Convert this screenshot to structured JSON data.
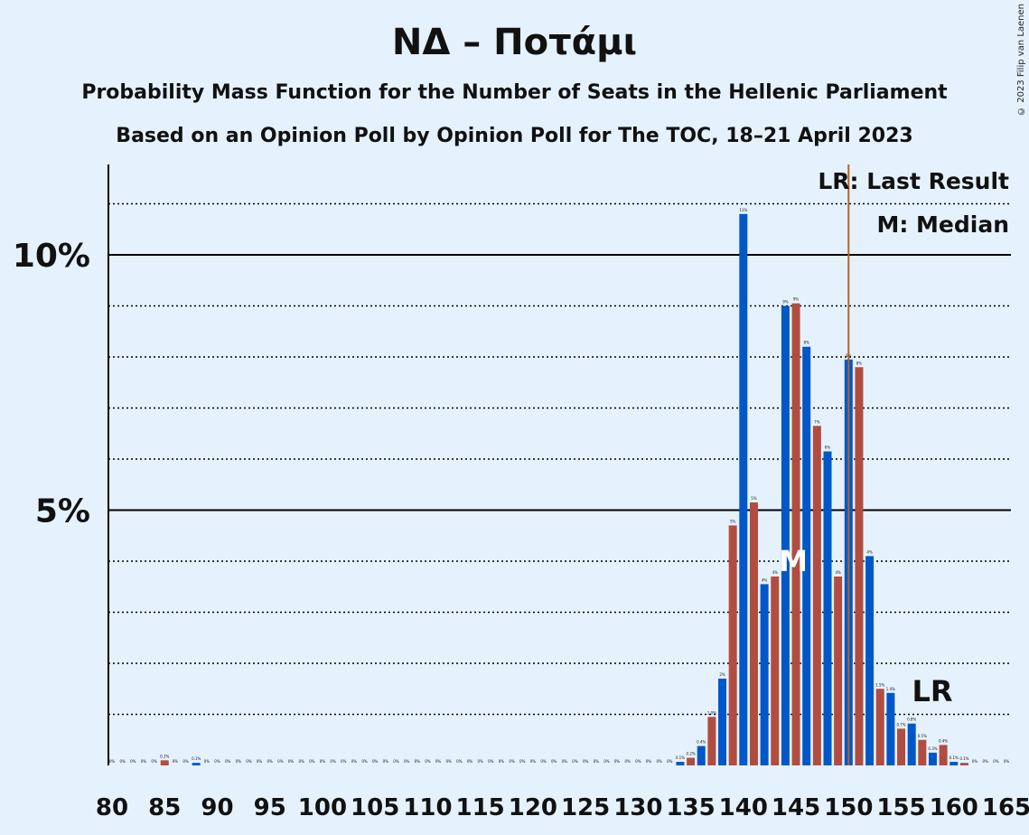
{
  "title": "ΝΔ – Ποτάμι",
  "subtitle1": "Probability Mass Function for the Number of Seats in the Hellenic Parliament",
  "subtitle2": "Based on an Opinion Poll by Opinion Poll for The TOC, 18–21 April 2023",
  "copyright": "© 2023 Filip van Laenen",
  "legend": {
    "last_result": "LR: Last Result",
    "median": "M: Median"
  },
  "markers": {
    "median_label": "M",
    "median_seat": 145,
    "last_result_label": "LR",
    "last_result_seat": 150
  },
  "colors": {
    "blue": "#0057c8",
    "red": "#b14d40",
    "lr_line": "#b5651d",
    "background": "#e5f2fe"
  },
  "chart_data": {
    "type": "bar",
    "xlim": [
      80,
      165
    ],
    "ylim": [
      0,
      11.8
    ],
    "x_ticks": [
      80,
      85,
      90,
      95,
      100,
      105,
      110,
      115,
      120,
      125,
      130,
      135,
      140,
      145,
      150,
      155,
      160,
      165
    ],
    "y_ticks": [
      {
        "value": 5,
        "label": "5%"
      },
      {
        "value": 10,
        "label": "10%"
      }
    ],
    "grid": "dotted every 1%, solid at 5% and 10%",
    "bars": [
      {
        "x": 80,
        "v": 0,
        "l": "0%"
      },
      {
        "x": 81,
        "v": 0,
        "l": "0%"
      },
      {
        "x": 82,
        "v": 0,
        "l": "0%"
      },
      {
        "x": 83,
        "v": 0,
        "l": "0%"
      },
      {
        "x": 84,
        "v": 0,
        "l": "0%"
      },
      {
        "x": 85,
        "v": 0.1,
        "l": "0.1%"
      },
      {
        "x": 86,
        "v": 0,
        "l": "0%"
      },
      {
        "x": 87,
        "v": 0,
        "l": "0%"
      },
      {
        "x": 88,
        "v": 0.05,
        "l": "0.1%"
      },
      {
        "x": 89,
        "v": 0,
        "l": "0%"
      },
      {
        "x": 90,
        "v": 0,
        "l": "0%"
      },
      {
        "x": 91,
        "v": 0,
        "l": "0%"
      },
      {
        "x": 92,
        "v": 0,
        "l": "0%"
      },
      {
        "x": 93,
        "v": 0,
        "l": "0%"
      },
      {
        "x": 94,
        "v": 0,
        "l": "0%"
      },
      {
        "x": 95,
        "v": 0,
        "l": "0%"
      },
      {
        "x": 96,
        "v": 0,
        "l": "0%"
      },
      {
        "x": 97,
        "v": 0,
        "l": "0%"
      },
      {
        "x": 98,
        "v": 0,
        "l": "0%"
      },
      {
        "x": 99,
        "v": 0,
        "l": "0%"
      },
      {
        "x": 100,
        "v": 0,
        "l": "0%"
      },
      {
        "x": 101,
        "v": 0,
        "l": "0%"
      },
      {
        "x": 102,
        "v": 0,
        "l": "0%"
      },
      {
        "x": 103,
        "v": 0,
        "l": "0%"
      },
      {
        "x": 104,
        "v": 0,
        "l": "0%"
      },
      {
        "x": 105,
        "v": 0,
        "l": "0%"
      },
      {
        "x": 106,
        "v": 0,
        "l": "0%"
      },
      {
        "x": 107,
        "v": 0,
        "l": "0%"
      },
      {
        "x": 108,
        "v": 0,
        "l": "0%"
      },
      {
        "x": 109,
        "v": 0,
        "l": "0%"
      },
      {
        "x": 110,
        "v": 0,
        "l": "0%"
      },
      {
        "x": 111,
        "v": 0,
        "l": "0%"
      },
      {
        "x": 112,
        "v": 0,
        "l": "0%"
      },
      {
        "x": 113,
        "v": 0,
        "l": "0%"
      },
      {
        "x": 114,
        "v": 0,
        "l": "0%"
      },
      {
        "x": 115,
        "v": 0,
        "l": "0%"
      },
      {
        "x": 116,
        "v": 0,
        "l": "0%"
      },
      {
        "x": 117,
        "v": 0,
        "l": "0%"
      },
      {
        "x": 118,
        "v": 0,
        "l": "0%"
      },
      {
        "x": 119,
        "v": 0,
        "l": "0%"
      },
      {
        "x": 120,
        "v": 0,
        "l": "0%"
      },
      {
        "x": 121,
        "v": 0,
        "l": "0%"
      },
      {
        "x": 122,
        "v": 0,
        "l": "0%"
      },
      {
        "x": 123,
        "v": 0,
        "l": "0%"
      },
      {
        "x": 124,
        "v": 0,
        "l": "0%"
      },
      {
        "x": 125,
        "v": 0,
        "l": "0%"
      },
      {
        "x": 126,
        "v": 0,
        "l": "0%"
      },
      {
        "x": 127,
        "v": 0,
        "l": "0%"
      },
      {
        "x": 128,
        "v": 0,
        "l": "0%"
      },
      {
        "x": 129,
        "v": 0,
        "l": "0%"
      },
      {
        "x": 130,
        "v": 0,
        "l": "0%"
      },
      {
        "x": 131,
        "v": 0,
        "l": "0%"
      },
      {
        "x": 132,
        "v": 0,
        "l": "0%"
      },
      {
        "x": 133,
        "v": 0,
        "l": "0%"
      },
      {
        "x": 134,
        "v": 0.07,
        "l": "0.1%"
      },
      {
        "x": 135,
        "v": 0.15,
        "l": "0.2%"
      },
      {
        "x": 136,
        "v": 0.38,
        "l": "0.4%"
      },
      {
        "x": 137,
        "v": 0.95,
        "l": "1.0%"
      },
      {
        "x": 138,
        "v": 1.7,
        "l": "2%"
      },
      {
        "x": 139,
        "v": 4.7,
        "l": "5%"
      },
      {
        "x": 140,
        "v": 10.8,
        "l": "11%"
      },
      {
        "x": 141,
        "v": 5.15,
        "l": "5%"
      },
      {
        "x": 142,
        "v": 3.55,
        "l": "4%"
      },
      {
        "x": 143,
        "v": 3.7,
        "l": "4%"
      },
      {
        "x": 144,
        "v": 9.0,
        "l": "9%"
      },
      {
        "x": 145,
        "v": 9.05,
        "l": "9%"
      },
      {
        "x": 146,
        "v": 8.2,
        "l": "8%"
      },
      {
        "x": 147,
        "v": 6.65,
        "l": "7%"
      },
      {
        "x": 148,
        "v": 6.15,
        "l": "6%"
      },
      {
        "x": 149,
        "v": 3.7,
        "l": "4%"
      },
      {
        "x": 150,
        "v": 7.95,
        "l": "8%"
      },
      {
        "x": 151,
        "v": 7.8,
        "l": "8%"
      },
      {
        "x": 152,
        "v": 4.1,
        "l": "4%"
      },
      {
        "x": 153,
        "v": 1.5,
        "l": "1.5%"
      },
      {
        "x": 154,
        "v": 1.42,
        "l": "1.4%"
      },
      {
        "x": 155,
        "v": 0.72,
        "l": "0.7%"
      },
      {
        "x": 156,
        "v": 0.82,
        "l": "0.8%"
      },
      {
        "x": 157,
        "v": 0.5,
        "l": "0.5%"
      },
      {
        "x": 158,
        "v": 0.25,
        "l": "0.3%"
      },
      {
        "x": 159,
        "v": 0.4,
        "l": "0.4%"
      },
      {
        "x": 160,
        "v": 0.07,
        "l": "0.1%"
      },
      {
        "x": 161,
        "v": 0.05,
        "l": "0.1%"
      },
      {
        "x": 162,
        "v": 0,
        "l": "0%"
      },
      {
        "x": 163,
        "v": 0,
        "l": "0%"
      },
      {
        "x": 164,
        "v": 0,
        "l": "0%"
      },
      {
        "x": 165,
        "v": 0,
        "l": "0%"
      }
    ]
  }
}
